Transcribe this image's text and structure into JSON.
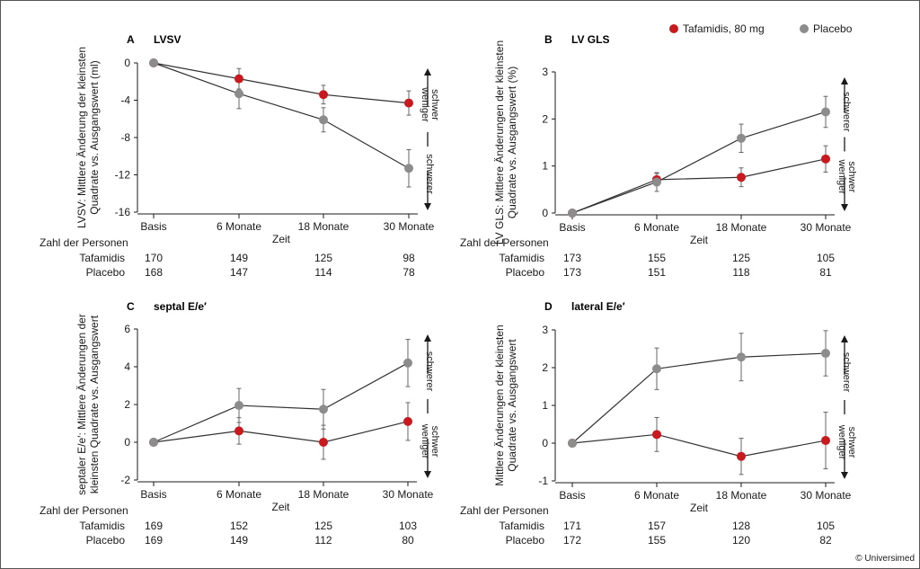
{
  "legend": [
    {
      "label": "Tafamidis, 80 mg",
      "color": "#c8191f"
    },
    {
      "label": "Placebo",
      "color": "#8c8c8c"
    }
  ],
  "copyright": "© Universimed",
  "table_header": "Zahl der Personen",
  "chart_data": [
    {
      "id": "A",
      "letter": "A",
      "title": "LVSV",
      "type": "line",
      "ylabel": [
        "LVSV: Mittlere Änderung der kleinsten",
        "Quadrate vs. Ausgangswert (ml)"
      ],
      "xlabel": "Zeit",
      "categories": [
        "Basis",
        "6 Monate",
        "18 Monate",
        "30 Monate"
      ],
      "ylim": [
        -16,
        0
      ],
      "yticks": [
        0,
        -4,
        -8,
        -12,
        -16
      ],
      "severity": {
        "top": "weniger schwer",
        "bottom": "schwerer",
        "top_lines": [
          "weniger",
          "schwer"
        ],
        "bottom_lines": [
          "schwerer"
        ]
      },
      "series": [
        {
          "name": "Tafamidis, 80 mg",
          "color": "#c8191f",
          "values": [
            0,
            -1.7,
            -3.4,
            -4.3
          ],
          "err": [
            0,
            1.1,
            1.0,
            1.3
          ]
        },
        {
          "name": "Placebo",
          "color": "#8c8c8c",
          "values": [
            0,
            -3.3,
            -6.1,
            -11.3
          ],
          "err": [
            0,
            1.6,
            1.3,
            2.0
          ]
        }
      ],
      "table": {
        "Tafamidis": [
          "170",
          "149",
          "125",
          "98"
        ],
        "Placebo": [
          "168",
          "147",
          "114",
          "78"
        ]
      }
    },
    {
      "id": "B",
      "letter": "B",
      "title": "LV GLS",
      "type": "line",
      "ylabel": [
        "LV GLS: Mittlere Änderungen der kleinsten",
        "Quadrate vs. Ausgangswert (%)"
      ],
      "xlabel": "Zeit",
      "categories": [
        "Basis",
        "6 Monate",
        "18 Monate",
        "30 Monate"
      ],
      "ylim": [
        0,
        3
      ],
      "yticks": [
        0,
        1,
        2,
        3
      ],
      "severity": {
        "top": "schwerer",
        "bottom": "weniger schwer",
        "top_lines": [
          "schwerer"
        ],
        "bottom_lines": [
          "weniger",
          "schwer"
        ]
      },
      "series": [
        {
          "name": "Tafamidis, 80 mg",
          "color": "#c8191f",
          "values": [
            0,
            0.71,
            0.76,
            1.15
          ],
          "err": [
            0,
            0.13,
            0.2,
            0.28
          ]
        },
        {
          "name": "Placebo",
          "color": "#8c8c8c",
          "values": [
            0,
            0.66,
            1.59,
            2.15
          ],
          "err": [
            0,
            0.2,
            0.3,
            0.33
          ]
        }
      ],
      "table": {
        "Tafamidis": [
          "173",
          "155",
          "125",
          "105"
        ],
        "Placebo": [
          "173",
          "151",
          "118",
          "81"
        ]
      }
    },
    {
      "id": "C",
      "letter": "C",
      "title": "septal E/e′",
      "type": "line",
      "ylabel": [
        "septaler E/e′: Mittlere Änderungen der",
        "kleinsten Quadrate vs. Ausgangswert"
      ],
      "xlabel": "Zeit",
      "categories": [
        "Basis",
        "6 Monate",
        "18 Monate",
        "30 Monate"
      ],
      "ylim": [
        -2,
        6
      ],
      "yticks": [
        -2,
        0,
        2,
        4,
        6
      ],
      "severity": {
        "top": "schwerer",
        "bottom": "weniger schwer",
        "top_lines": [
          "schwerer"
        ],
        "bottom_lines": [
          "weniger",
          "schwer"
        ]
      },
      "series": [
        {
          "name": "Tafamidis, 80 mg",
          "color": "#c8191f",
          "values": [
            0,
            0.6,
            0.0,
            1.1
          ],
          "err": [
            0,
            0.7,
            0.9,
            1.0
          ]
        },
        {
          "name": "Placebo",
          "color": "#8c8c8c",
          "values": [
            0,
            1.95,
            1.75,
            4.2
          ],
          "err": [
            0,
            0.9,
            1.05,
            1.25
          ]
        }
      ],
      "table": {
        "Tafamidis": [
          "169",
          "152",
          "125",
          "103"
        ],
        "Placebo": [
          "169",
          "149",
          "112",
          "80"
        ]
      }
    },
    {
      "id": "D",
      "letter": "D",
      "title": "lateral E/e′",
      "type": "line",
      "ylabel": [
        "Mittlere Änderungen der kleinsten",
        "Quadrate vs. Ausgangswert"
      ],
      "xlabel": "Zeit",
      "categories": [
        "Basis",
        "6 Monate",
        "18 Monate",
        "30 Monate"
      ],
      "ylim": [
        -1,
        3
      ],
      "yticks": [
        -1,
        0,
        1,
        2,
        3
      ],
      "severity": {
        "top": "schwerer",
        "bottom": "weniger schwer",
        "top_lines": [
          "schwerer"
        ],
        "bottom_lines": [
          "weniger",
          "schwer"
        ]
      },
      "series": [
        {
          "name": "Tafamidis, 80 mg",
          "color": "#c8191f",
          "values": [
            0,
            0.23,
            -0.35,
            0.07
          ],
          "err": [
            0,
            0.45,
            0.48,
            0.75
          ]
        },
        {
          "name": "Placebo",
          "color": "#8c8c8c",
          "values": [
            0,
            1.97,
            2.28,
            2.38
          ],
          "err": [
            0,
            0.55,
            0.63,
            0.6
          ]
        }
      ],
      "table": {
        "Tafamidis": [
          "171",
          "157",
          "128",
          "105"
        ],
        "Placebo": [
          "172",
          "155",
          "120",
          "82"
        ]
      }
    }
  ]
}
